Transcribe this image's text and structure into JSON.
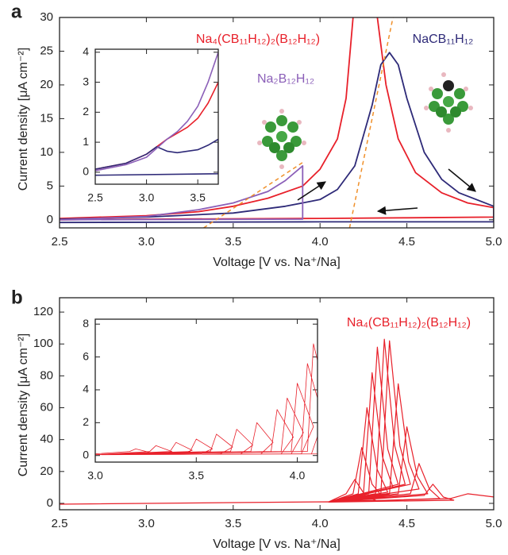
{
  "chart_data": [
    {
      "type": "line",
      "panel_label": "a",
      "xlabel": "Voltage [V vs. Na⁺/Na]",
      "ylabel": "Current density [μA cm⁻²]",
      "xlim": [
        2.5,
        5.0
      ],
      "ylim": [
        -1.2,
        30
      ],
      "xticks": [
        2.5,
        {
          "value": 3,
          "label": "3.0"
        },
        3.5,
        {
          "value": 4,
          "label": "4.0"
        },
        4.5,
        {
          "value": 5,
          "label": "5.0"
        }
      ],
      "yticks": [
        0,
        5,
        10,
        15,
        20,
        25,
        30
      ],
      "series": [
        {
          "name": "Na₄(CB₁₁H₁₂)₂(B₁₂H₁₂)",
          "color": "#e8202a",
          "x": [
            2.5,
            3.0,
            3.3,
            3.5,
            3.7,
            3.9,
            4.0,
            4.1,
            4.15,
            4.19,
            4.26,
            4.33,
            4.38,
            4.45,
            4.55,
            4.7,
            4.85,
            5.0,
            5.0,
            4.5,
            4.0,
            3.0,
            2.5
          ],
          "values": [
            0.2,
            0.6,
            1.2,
            2.0,
            3.2,
            5.0,
            7.5,
            12,
            18,
            30,
            null,
            30,
            20,
            12,
            7,
            4,
            2.5,
            1.8,
            0.4,
            0.3,
            0.2,
            0.1,
            0.0
          ]
        },
        {
          "name": "NaCB₁₁H₁₂",
          "color": "#2e2a78",
          "x": [
            2.5,
            3.0,
            3.5,
            3.8,
            4.0,
            4.1,
            4.2,
            4.3,
            4.35,
            4.4,
            4.45,
            4.5,
            4.6,
            4.7,
            4.8,
            5.0,
            5.0,
            4.0,
            2.5
          ],
          "values": [
            0.1,
            0.4,
            1.0,
            2.0,
            3.0,
            4.5,
            8,
            17,
            23,
            24.8,
            23,
            18,
            10,
            6,
            4,
            2,
            -0.3,
            -0.3,
            -0.4
          ]
        },
        {
          "name": "Na₂B₁₂H₁₂",
          "color": "#8b5fb8",
          "x": [
            2.5,
            3.0,
            3.3,
            3.5,
            3.7,
            3.8,
            3.9,
            3.9,
            2.5
          ],
          "values": [
            0.0,
            0.5,
            1.5,
            2.5,
            4.2,
            5.8,
            8,
            0.1,
            0.0
          ]
        },
        {
          "color": "#f0902a",
          "dash": true,
          "x": [
            3.33,
            3.9
          ],
          "values": [
            -1.2,
            8.5
          ]
        },
        {
          "color": "#f0902a",
          "dash": true,
          "x": [
            4.17,
            4.42
          ],
          "values": [
            -1.2,
            30
          ]
        }
      ]
    },
    {
      "type": "line",
      "xlim": [
        2.5,
        3.7
      ],
      "ylim": [
        -0.4,
        4.1
      ],
      "xticks": [
        2.5,
        {
          "value": 3,
          "label": "3.0"
        },
        3.5
      ],
      "yticks": [
        0,
        1,
        2,
        3,
        4
      ],
      "series": [
        {
          "color": "#e8202a",
          "x": [
            2.5,
            2.8,
            3.0,
            3.1,
            3.2,
            3.3,
            3.4,
            3.5,
            3.6,
            3.7
          ],
          "values": [
            0.1,
            0.3,
            0.6,
            0.85,
            1.1,
            1.3,
            1.5,
            1.8,
            2.3,
            3.0
          ]
        },
        {
          "color": "#2e2a78",
          "x": [
            2.5,
            2.8,
            3.0,
            3.1,
            3.2,
            3.3,
            3.4,
            3.5,
            3.6,
            3.7,
            3.7,
            2.5
          ],
          "values": [
            0.1,
            0.3,
            0.6,
            0.85,
            0.7,
            0.65,
            0.7,
            0.75,
            0.9,
            1.1,
            -0.05,
            -0.1
          ]
        },
        {
          "color": "#8b5fb8",
          "x": [
            2.5,
            2.8,
            3.0,
            3.1,
            3.2,
            3.3,
            3.4,
            3.5,
            3.6,
            3.7
          ],
          "values": [
            0.05,
            0.25,
            0.5,
            0.8,
            1.1,
            1.35,
            1.7,
            2.2,
            3.0,
            4.0
          ]
        }
      ]
    },
    {
      "type": "line",
      "panel_label": "b",
      "xlabel": "Voltage [V vs. Na⁺/Na]",
      "ylabel": "Current density [μA cm⁻²]",
      "xlim": [
        2.5,
        5.0
      ],
      "ylim": [
        -4,
        129
      ],
      "xticks": [
        2.5,
        {
          "value": 3,
          "label": "3.0"
        },
        3.5,
        {
          "value": 4,
          "label": "4.0"
        },
        4.5,
        {
          "value": 5,
          "label": "5.0"
        }
      ],
      "yticks": [
        0,
        20,
        40,
        60,
        80,
        100,
        120
      ],
      "series": [
        {
          "name": "Na₄(CB₁₁H₁₂)₂(B₁₂H₁₂)",
          "color": "#e8202a",
          "x": [
            2.5,
            3.5,
            4.05,
            4.15,
            4.2,
            4.26,
            4.32,
            4.05,
            4.19,
            4.24,
            4.3,
            4.36,
            4.05,
            4.22,
            4.27,
            4.33,
            4.39,
            4.05,
            4.25,
            4.3,
            4.36,
            4.42,
            4.05,
            4.28,
            4.33,
            4.39,
            4.45,
            4.05,
            4.32,
            4.37,
            4.43,
            4.49,
            4.05,
            4.35,
            4.4,
            4.46,
            4.52,
            4.05,
            4.4,
            4.45,
            4.51,
            4.57,
            4.05,
            4.45,
            4.5,
            4.56,
            4.62,
            4.05,
            4.52,
            4.57,
            4.63,
            4.69,
            4.05,
            4.6,
            4.65,
            4.71,
            4.77,
            4.05,
            4.75,
            4.85,
            5.0
          ],
          "values": [
            -0.5,
            0.5,
            1.0,
            6,
            15,
            5,
            2,
            0.8,
            6,
            35,
            12,
            4,
            0.8,
            6,
            60,
            21,
            7,
            0.8,
            6,
            82,
            29,
            10,
            0.8,
            6,
            98,
            34,
            12,
            0.8,
            6,
            103,
            36,
            12,
            0.8,
            6,
            102,
            36,
            12,
            0.8,
            6,
            75,
            26,
            9,
            0.8,
            6,
            48,
            17,
            6,
            0.8,
            6,
            25,
            9,
            3,
            0.8,
            5,
            12,
            4,
            2,
            0.8,
            3,
            6,
            4
          ]
        }
      ]
    },
    {
      "type": "line",
      "xlim": [
        3.0,
        4.1
      ],
      "ylim": [
        -0.4,
        8.3
      ],
      "xticks": [
        {
          "value": 3,
          "label": "3.0"
        },
        3.5,
        {
          "value": 4,
          "label": "4.0"
        }
      ],
      "yticks": [
        0,
        2,
        4,
        6,
        8
      ],
      "series": [
        {
          "color": "#e8202a",
          "x": [
            3.0,
            3.17,
            3.2,
            3.28,
            3.22,
            3.0,
            3.27,
            3.3,
            3.38,
            3.32,
            3.0,
            3.37,
            3.4,
            3.48,
            3.42,
            3.0,
            3.47,
            3.5,
            3.58,
            3.52,
            3.0,
            3.57,
            3.6,
            3.68,
            3.62,
            3.0,
            3.67,
            3.7,
            3.78,
            3.72,
            3.0,
            3.77,
            3.8,
            3.88,
            3.82,
            3.0,
            3.87,
            3.9,
            3.98,
            3.92,
            3.0,
            3.92,
            3.95,
            4.03,
            3.97,
            3.0,
            3.97,
            4.0,
            4.08,
            4.02,
            3.0,
            4.02,
            4.05,
            4.13,
            4.07,
            3.0,
            4.05,
            4.08,
            4.16,
            4.1,
            3.0
          ],
          "values": [
            0.1,
            0.25,
            0.4,
            0.16,
            0.1,
            0.05,
            0.25,
            0.6,
            0.24,
            0.1,
            0.05,
            0.25,
            0.8,
            0.32,
            0.1,
            0.05,
            0.25,
            1.0,
            0.4,
            0.1,
            0.05,
            0.25,
            1.3,
            0.52,
            0.1,
            0.05,
            0.25,
            1.6,
            0.64,
            0.1,
            0.05,
            0.25,
            2.0,
            0.8,
            0.1,
            0.05,
            0.25,
            2.8,
            1.12,
            0.1,
            0.05,
            0.25,
            3.5,
            1.4,
            0.1,
            0.05,
            0.25,
            4.4,
            1.76,
            0.1,
            0.05,
            0.25,
            5.6,
            2.24,
            0.1,
            0.05,
            0.25,
            6.8,
            2.72,
            0.1,
            0.05
          ]
        }
      ]
    }
  ]
}
